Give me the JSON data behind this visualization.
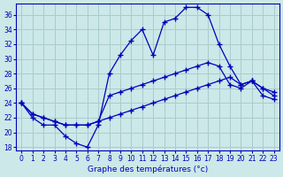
{
  "xlabel": "Graphe des températures (°c)",
  "bg_color": "#cce8e8",
  "grid_color": "#aacccc",
  "line_color": "#0000bb",
  "ylim": [
    17.5,
    37.5
  ],
  "xlim": [
    -0.5,
    23.5
  ],
  "yticks": [
    18,
    20,
    22,
    24,
    26,
    28,
    30,
    32,
    34,
    36
  ],
  "xticks": [
    0,
    1,
    2,
    3,
    4,
    5,
    6,
    7,
    8,
    9,
    10,
    11,
    12,
    13,
    14,
    15,
    16,
    17,
    18,
    19,
    20,
    21,
    22,
    23
  ],
  "line1_x": [
    0,
    1,
    2,
    3,
    4,
    5,
    6,
    7,
    8,
    9,
    10,
    11,
    12,
    13,
    14,
    15,
    16,
    17,
    18,
    19,
    20,
    21,
    22,
    23
  ],
  "line1_y": [
    24,
    22,
    21,
    21,
    19.5,
    18.5,
    18,
    21,
    28,
    30.5,
    32.5,
    34,
    30.5,
    35,
    35.5,
    37,
    37,
    36,
    32,
    29,
    26.5,
    27,
    26,
    25
  ],
  "line2_x": [
    0,
    1,
    2,
    3,
    4,
    5,
    6,
    7,
    8,
    9,
    10,
    11,
    12,
    13,
    14,
    15,
    16,
    17,
    18,
    19,
    20,
    21,
    22,
    23
  ],
  "line2_y": [
    24,
    22.5,
    22,
    21.5,
    21,
    21,
    21,
    21.5,
    25,
    25.5,
    26,
    26.5,
    27,
    27.5,
    28,
    28.5,
    29,
    29.5,
    29,
    26.5,
    26,
    27,
    25,
    24.5
  ],
  "line3_x": [
    0,
    1,
    2,
    3,
    4,
    5,
    6,
    7,
    8,
    9,
    10,
    11,
    12,
    13,
    14,
    15,
    16,
    17,
    18,
    19,
    20,
    21,
    22,
    23
  ],
  "line3_y": [
    24,
    22.5,
    22,
    21.5,
    21,
    21,
    21,
    21.5,
    22,
    22.5,
    23,
    23.5,
    24,
    24.5,
    25,
    25.5,
    26,
    26.5,
    27,
    27.5,
    26.5,
    27,
    26,
    25.5
  ]
}
